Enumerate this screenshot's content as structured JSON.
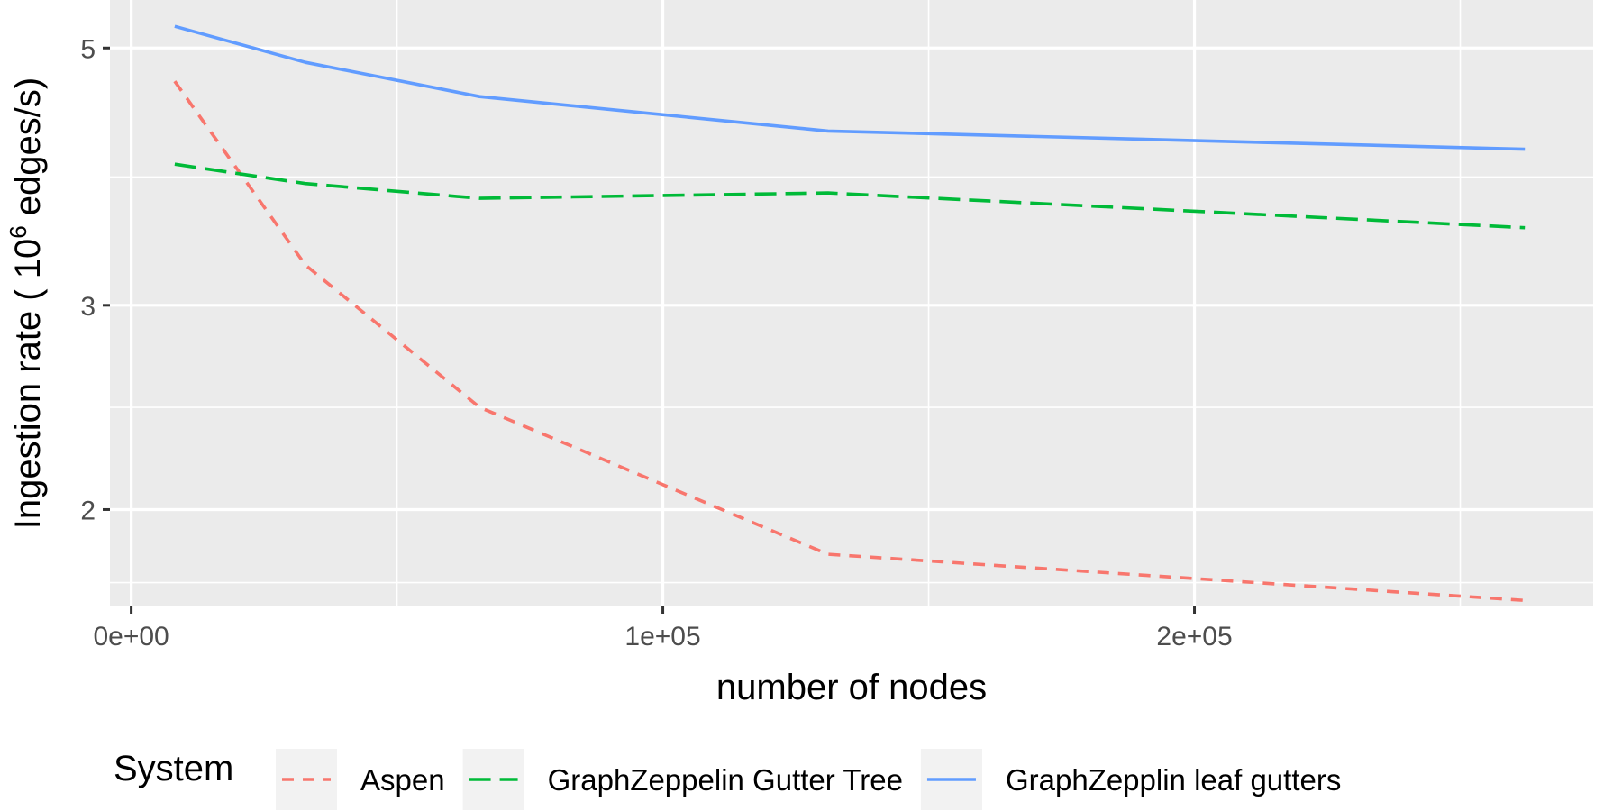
{
  "chart_data": {
    "type": "line",
    "xlabel": "number of nodes",
    "ylabel": {
      "prefix": "Ingestion rate ( 10",
      "exponent": "6",
      "suffix": " edges/s)"
    },
    "x_scale": "linear",
    "y_scale": "log",
    "xlim": [
      -4000,
      275000
    ],
    "ylim": [
      1.65,
      5.5
    ],
    "x_ticks": [
      {
        "value": 0,
        "label": "0e+00"
      },
      {
        "value": 100000,
        "label": "1e+05"
      },
      {
        "value": 200000,
        "label": "2e+05"
      }
    ],
    "x_minor_ticks": [
      50000,
      150000,
      250000
    ],
    "y_ticks": [
      {
        "value": 2,
        "label": "2"
      },
      {
        "value": 3,
        "label": "3"
      },
      {
        "value": 5,
        "label": "5"
      }
    ],
    "y_minor_ticks": [
      1.73,
      2.45,
      3.87
    ],
    "grid": true,
    "legend": {
      "title": "System",
      "position": "bottom"
    },
    "series": [
      {
        "name": "Aspen",
        "color": "#F8766D",
        "dash": "short",
        "x": [
          8192,
          32768,
          65536,
          131072,
          262144
        ],
        "y": [
          4.68,
          3.25,
          2.45,
          1.83,
          1.67
        ]
      },
      {
        "name": "GraphZeppelin Gutter Tree",
        "color": "#00BA38",
        "dash": "long",
        "x": [
          8192,
          32768,
          65536,
          131072,
          262144
        ],
        "y": [
          3.97,
          3.82,
          3.71,
          3.75,
          3.5
        ]
      },
      {
        "name": "GraphZepplin leaf gutters",
        "color": "#619CFF",
        "dash": "solid",
        "x": [
          8192,
          32768,
          65536,
          131072,
          262144
        ],
        "y": [
          5.22,
          4.86,
          4.54,
          4.24,
          4.09
        ]
      }
    ]
  }
}
